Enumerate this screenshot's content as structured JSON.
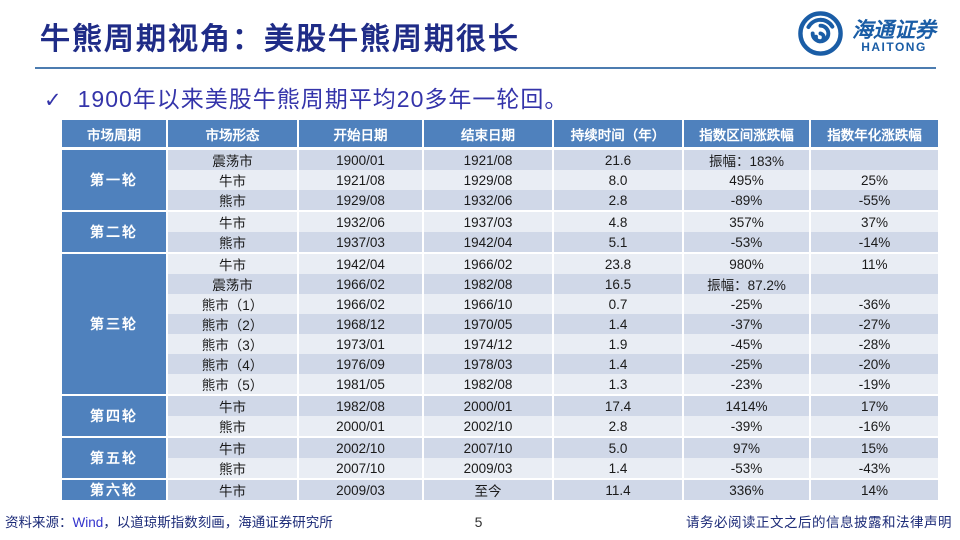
{
  "header": {
    "title": "牛熊周期视角：美股牛熊周期很长"
  },
  "logo": {
    "cn": "海通证券",
    "en": "HAITONG"
  },
  "bullet": {
    "marker": "✓",
    "text": "1900年以来美股牛熊周期平均20多年一轮回。"
  },
  "footer": {
    "source_prefix": "资料来源：",
    "source_brand": "Wind",
    "source_suffix": "，以道琼斯指数刻画，海通证券研究所",
    "page": "5",
    "disclaimer": "请务必阅读正文之后的信息披露和法律声明"
  },
  "colors": {
    "header_blue": "#4F81BD",
    "band_dark": "#D0D8E8",
    "band_light": "#E9EDF4",
    "title_navy": "#1F2C87",
    "bullet_blue": "#3434AA",
    "logo_blue": "#1A5DA6",
    "rule_blue": "#4C7CB0",
    "footer_navy": "#1C2B78"
  },
  "chart_data": {
    "type": "table",
    "columns": [
      "市场周期",
      "市场形态",
      "开始日期",
      "结束日期",
      "持续时间（年）",
      "指数区间涨跌幅",
      "指数年化涨跌幅"
    ],
    "groups": [
      {
        "cycle": "第一轮",
        "rows": [
          [
            "震荡市",
            "1900/01",
            "1921/08",
            "21.6",
            "振幅：183%",
            ""
          ],
          [
            "牛市",
            "1921/08",
            "1929/08",
            "8.0",
            "495%",
            "25%"
          ],
          [
            "熊市",
            "1929/08",
            "1932/06",
            "2.8",
            "-89%",
            "-55%"
          ]
        ]
      },
      {
        "cycle": "第二轮",
        "rows": [
          [
            "牛市",
            "1932/06",
            "1937/03",
            "4.8",
            "357%",
            "37%"
          ],
          [
            "熊市",
            "1937/03",
            "1942/04",
            "5.1",
            "-53%",
            "-14%"
          ]
        ]
      },
      {
        "cycle": "第三轮",
        "rows": [
          [
            "牛市",
            "1942/04",
            "1966/02",
            "23.8",
            "980%",
            "11%"
          ],
          [
            "震荡市",
            "1966/02",
            "1982/08",
            "16.5",
            "振幅：87.2%",
            ""
          ],
          [
            "熊市（1）",
            "1966/02",
            "1966/10",
            "0.7",
            "-25%",
            "-36%"
          ],
          [
            "熊市（2）",
            "1968/12",
            "1970/05",
            "1.4",
            "-37%",
            "-27%"
          ],
          [
            "熊市（3）",
            "1973/01",
            "1974/12",
            "1.9",
            "-45%",
            "-28%"
          ],
          [
            "熊市（4）",
            "1976/09",
            "1978/03",
            "1.4",
            "-25%",
            "-20%"
          ],
          [
            "熊市（5）",
            "1981/05",
            "1982/08",
            "1.3",
            "-23%",
            "-19%"
          ]
        ]
      },
      {
        "cycle": "第四轮",
        "rows": [
          [
            "牛市",
            "1982/08",
            "2000/01",
            "17.4",
            "1414%",
            "17%"
          ],
          [
            "熊市",
            "2000/01",
            "2002/10",
            "2.8",
            "-39%",
            "-16%"
          ]
        ]
      },
      {
        "cycle": "第五轮",
        "rows": [
          [
            "牛市",
            "2002/10",
            "2007/10",
            "5.0",
            "97%",
            "15%"
          ],
          [
            "熊市",
            "2007/10",
            "2009/03",
            "1.4",
            "-53%",
            "-43%"
          ]
        ]
      },
      {
        "cycle": "第六轮",
        "rows": [
          [
            "牛市",
            "2009/03",
            "至今",
            "11.4",
            "336%",
            "14%"
          ]
        ]
      }
    ]
  }
}
